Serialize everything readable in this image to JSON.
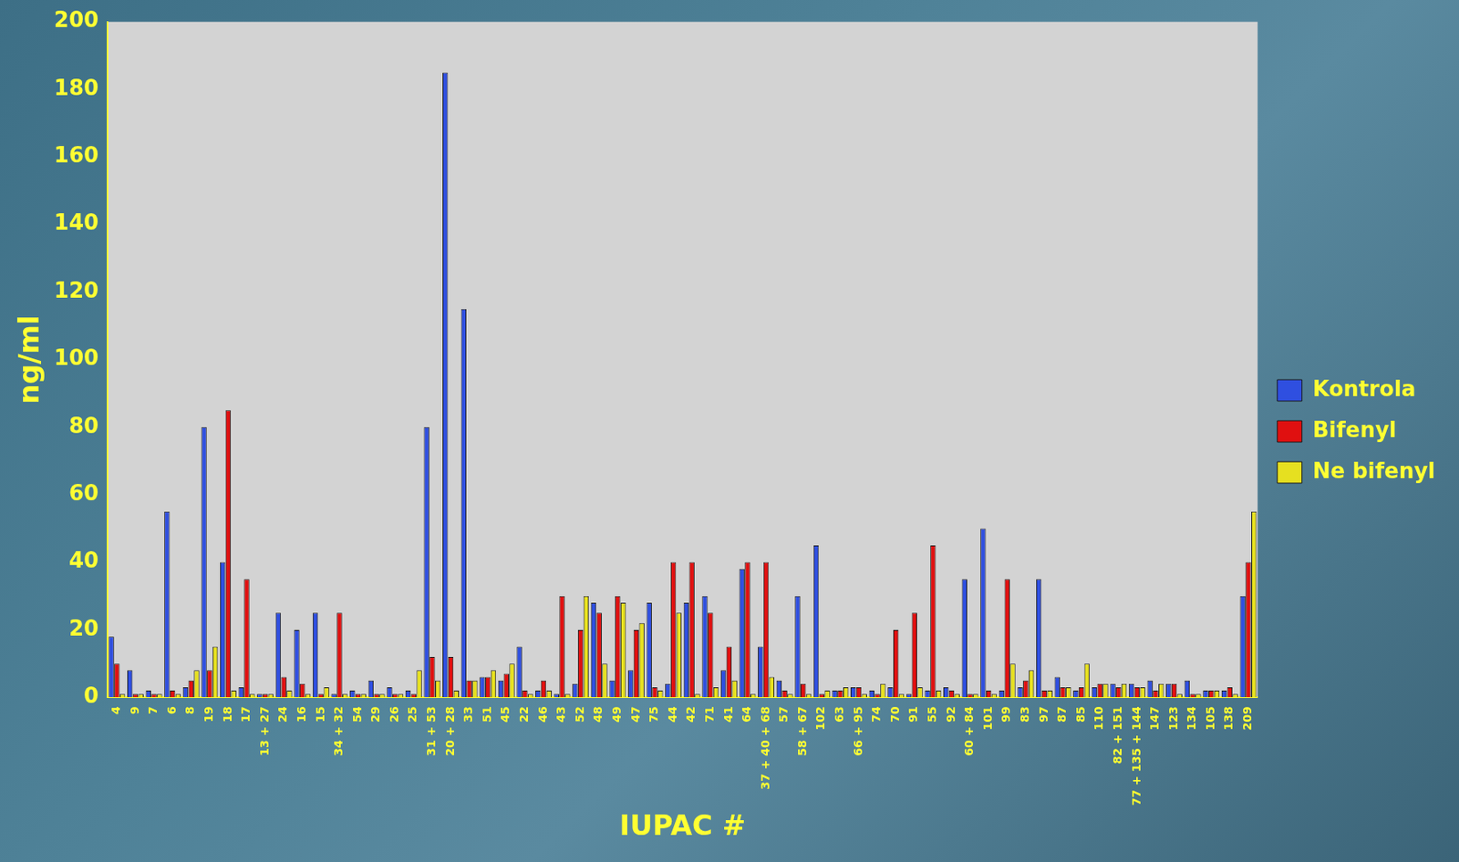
{
  "chart_data": {
    "type": "bar",
    "y_label": "ng/ml",
    "x_label": "IUPAC #",
    "categories": [
      "4",
      "9",
      "7",
      "6",
      "8",
      "19",
      "18",
      "17",
      "13 + 27",
      "24",
      "16",
      "15",
      "34 + 32",
      "54",
      "29",
      "26",
      "25",
      "31 + 53",
      "20 + 28",
      "33",
      "51",
      "45",
      "22",
      "46",
      "43",
      "52",
      "48",
      "49",
      "47",
      "75",
      "44",
      "42",
      "71",
      "41",
      "64",
      "37 + 40 + 68",
      "57",
      "58 + 67",
      "102",
      "63",
      "66 + 95",
      "74",
      "70",
      "91",
      "55",
      "92",
      "60 + 84",
      "101",
      "99",
      "83",
      "97",
      "87",
      "85",
      "110",
      "82 + 151",
      "77 + 135 + 144",
      "147",
      "123",
      "134",
      "105",
      "138",
      "209"
    ],
    "series": [
      {
        "name": "Kontrola",
        "color": "#2f4fe0",
        "values": [
          18,
          8,
          2,
          55,
          3,
          80,
          40,
          3,
          1,
          25,
          20,
          25,
          1,
          2,
          5,
          3,
          2,
          80,
          185,
          115,
          6,
          5,
          15,
          2,
          1,
          4,
          28,
          5,
          8,
          28,
          4,
          28,
          30,
          8,
          38,
          15,
          5,
          30,
          45,
          2,
          3,
          2,
          3,
          1,
          2,
          3,
          35,
          50,
          2,
          3,
          35,
          6,
          2,
          3,
          4,
          4,
          5,
          4,
          5,
          2,
          2,
          30
        ]
      },
      {
        "name": "Bifenyl",
        "color": "#e01010",
        "values": [
          10,
          1,
          1,
          2,
          5,
          8,
          85,
          35,
          1,
          6,
          4,
          1,
          25,
          1,
          1,
          1,
          1,
          12,
          12,
          5,
          6,
          7,
          2,
          5,
          30,
          20,
          25,
          30,
          20,
          3,
          40,
          40,
          25,
          15,
          40,
          40,
          2,
          4,
          1,
          2,
          3,
          1,
          20,
          25,
          45,
          2,
          1,
          2,
          35,
          5,
          2,
          3,
          3,
          4,
          3,
          3,
          2,
          4,
          1,
          2,
          3,
          40
        ]
      },
      {
        "name": "Ne bifenyl",
        "color": "#e6e020",
        "values": [
          1,
          1,
          1,
          1,
          8,
          15,
          2,
          1,
          1,
          2,
          1,
          3,
          1,
          1,
          1,
          1,
          8,
          5,
          2,
          5,
          8,
          10,
          1,
          2,
          1,
          30,
          10,
          28,
          22,
          2,
          25,
          1,
          3,
          5,
          1,
          6,
          1,
          1,
          2,
          3,
          1,
          4,
          1,
          3,
          2,
          1,
          1,
          1,
          10,
          8,
          2,
          3,
          10,
          4,
          4,
          3,
          4,
          1,
          1,
          2,
          1,
          55
        ]
      }
    ],
    "ylim": [
      0,
      200
    ],
    "yticks": [
      0,
      20,
      40,
      60,
      80,
      100,
      120,
      140,
      160,
      180,
      200
    ],
    "grid": false,
    "legend": "right"
  }
}
